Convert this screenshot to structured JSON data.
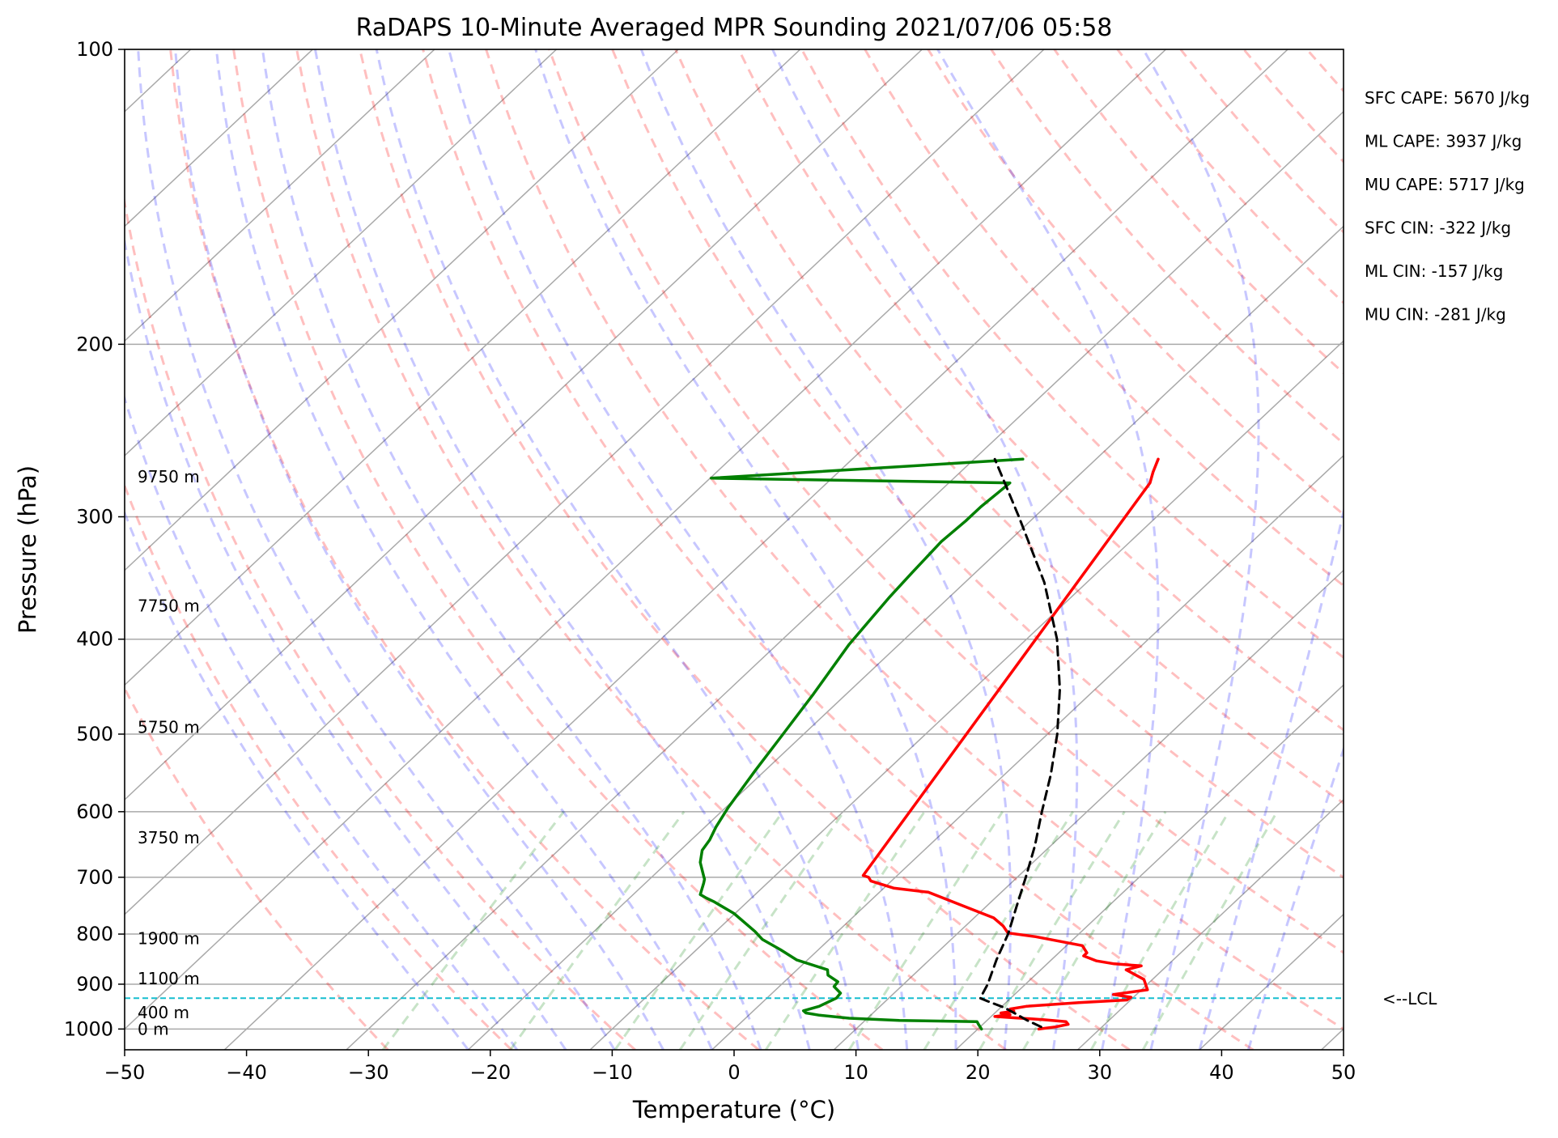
{
  "chart_data": {
    "type": "line",
    "subtype": "skew-t log-p sounding",
    "title": "RaDAPS 10-Minute Averaged MPR Sounding 2021/07/06 05:58",
    "xlabel": "Temperature (°C)",
    "ylabel": "Pressure (hPa)",
    "xlim": [
      -50,
      50
    ],
    "ylim": [
      1050,
      100
    ],
    "y_scale": "log",
    "grid": true,
    "x_ticks": [
      "−50",
      "−40",
      "−30",
      "−20",
      "−10",
      "0",
      "10",
      "20",
      "30",
      "40",
      "50"
    ],
    "x_tick_values": [
      -50,
      -40,
      -30,
      -20,
      -10,
      0,
      10,
      20,
      30,
      40,
      50
    ],
    "y_ticks": [
      "100",
      "200",
      "300",
      "400",
      "500",
      "600",
      "700",
      "800",
      "900",
      "1000"
    ],
    "y_tick_values": [
      100,
      200,
      300,
      400,
      500,
      600,
      700,
      800,
      900,
      1000
    ],
    "height_labels": [
      {
        "text": "9750 m",
        "pressure": 273
      },
      {
        "text": "7750 m",
        "pressure": 370
      },
      {
        "text": "5750 m",
        "pressure": 492
      },
      {
        "text": "3750 m",
        "pressure": 638
      },
      {
        "text": "1900 m",
        "pressure": 808
      },
      {
        "text": "1100 m",
        "pressure": 888
      },
      {
        "text": "400 m",
        "pressure": 962
      },
      {
        "text": "0 m",
        "pressure": 1000
      }
    ],
    "stats": [
      "SFC CAPE: 5670 J/kg",
      "ML CAPE: 3937 J/kg",
      "MU CAPE: 5717 J/kg",
      "SFC CIN: -322 J/kg",
      "ML CIN: -157 J/kg",
      "MU CIN: -281 J/kg"
    ],
    "lcl": {
      "label": "<--LCL",
      "pressure": 930
    },
    "colors": {
      "temperature": "#ff0000",
      "dewpoint": "#008000",
      "parcel": "#000000",
      "lcl": "#17becf",
      "dry_adiabats": "#ff0000",
      "moist_adiabats": "#0000ff",
      "mixing_ratio": "#008000",
      "isotherms": "#a9a9a9",
      "isobars": "#a9a9a9"
    },
    "series": [
      {
        "key": "temperature",
        "points": [
          [
            1000,
            25.0
          ],
          [
            995,
            26.2
          ],
          [
            989,
            27.0
          ],
          [
            983,
            26.6
          ],
          [
            978,
            24.5
          ],
          [
            974,
            22.0
          ],
          [
            971,
            20.3
          ],
          [
            967,
            21.4
          ],
          [
            963,
            20.5
          ],
          [
            959,
            21.4
          ],
          [
            954,
            20.9
          ],
          [
            948,
            22.0
          ],
          [
            940,
            26.0
          ],
          [
            934,
            29.7
          ],
          [
            928,
            29.8
          ],
          [
            922,
            28.1
          ],
          [
            912,
            30.5
          ],
          [
            890,
            29.3
          ],
          [
            870,
            27.0
          ],
          [
            862,
            27.9
          ],
          [
            858,
            25.5
          ],
          [
            852,
            23.8
          ],
          [
            842,
            22.3
          ],
          [
            836,
            22.3
          ],
          [
            822,
            21.3
          ],
          [
            805,
            16.7
          ],
          [
            798,
            14.1
          ],
          [
            785,
            13.1
          ],
          [
            770,
            11.6
          ],
          [
            752,
            8.6
          ],
          [
            725,
            4.0
          ],
          [
            718,
            0.8
          ],
          [
            706,
            -1.7
          ],
          [
            700,
            -2.2
          ],
          [
            697,
            -2.8
          ],
          [
            277,
            -13.5
          ],
          [
            275,
            -13.7
          ],
          [
            270,
            -14.2
          ],
          [
            262,
            -14.9
          ]
        ]
      },
      {
        "key": "dewpoint",
        "points": [
          [
            1000,
            20.3
          ],
          [
            990,
            19.7
          ],
          [
            983,
            19.3
          ],
          [
            980,
            12.8
          ],
          [
            975,
            8.5
          ],
          [
            968,
            5.8
          ],
          [
            963,
            4.5
          ],
          [
            958,
            4.1
          ],
          [
            948,
            5.0
          ],
          [
            930,
            5.7
          ],
          [
            919,
            5.6
          ],
          [
            905,
            4.5
          ],
          [
            895,
            4.4
          ],
          [
            881,
            3.0
          ],
          [
            870,
            2.5
          ],
          [
            850,
            -0.9
          ],
          [
            830,
            -3.1
          ],
          [
            810,
            -5.5
          ],
          [
            795,
            -6.8
          ],
          [
            762,
            -10.1
          ],
          [
            741,
            -12.8
          ],
          [
            735,
            -13.7
          ],
          [
            729,
            -14.5
          ],
          [
            710,
            -15.2
          ],
          [
            703,
            -15.5
          ],
          [
            700,
            -15.7
          ],
          [
            676,
            -17.3
          ],
          [
            657,
            -18.2
          ],
          [
            641,
            -18.5
          ],
          [
            622,
            -19.1
          ],
          [
            594,
            -19.8
          ],
          [
            545,
            -20.8
          ],
          [
            500,
            -21.7
          ],
          [
            455,
            -22.7
          ],
          [
            405,
            -24.1
          ],
          [
            363,
            -24.9
          ],
          [
            342,
            -25.2
          ],
          [
            318,
            -25.5
          ],
          [
            303,
            -25.3
          ],
          [
            293,
            -25.3
          ],
          [
            283,
            -25.1
          ],
          [
            277,
            -25.0
          ],
          [
            274,
            -49.9
          ],
          [
            262,
            -26.0
          ]
        ]
      },
      {
        "key": "parcel",
        "points": [
          [
            995,
            25.0
          ],
          [
            980,
            23.3
          ],
          [
            966,
            21.9
          ],
          [
            951,
            20.3
          ],
          [
            937,
            18.4
          ],
          [
            930,
            17.5
          ],
          [
            900,
            16.9
          ],
          [
            850,
            15.5
          ],
          [
            800,
            14.2
          ],
          [
            750,
            12.5
          ],
          [
            700,
            10.7
          ],
          [
            650,
            8.7
          ],
          [
            600,
            6.3
          ],
          [
            550,
            3.8
          ],
          [
            500,
            0.8
          ],
          [
            450,
            -2.9
          ],
          [
            400,
            -7.5
          ],
          [
            350,
            -13.5
          ],
          [
            300,
            -21.3
          ],
          [
            262,
            -28.3
          ]
        ]
      }
    ]
  }
}
